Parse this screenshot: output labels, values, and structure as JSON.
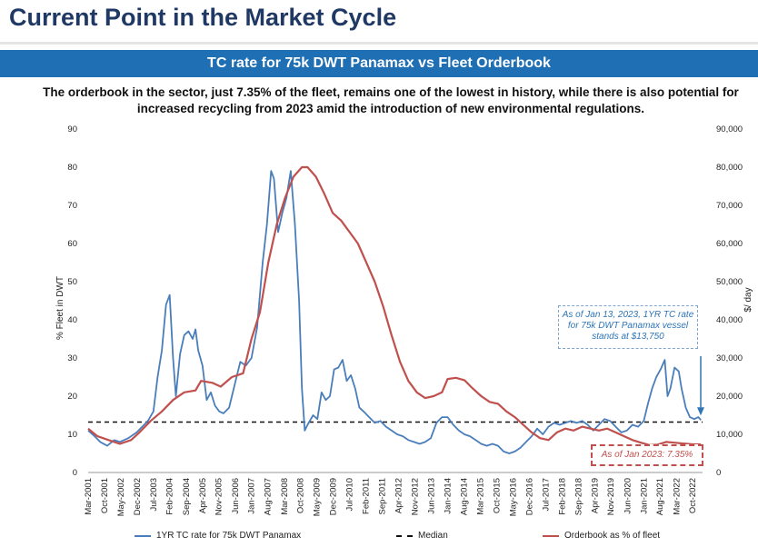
{
  "header": {
    "title": "Current Point in the Market Cycle",
    "banner": "TC rate for 75k DWT Panamax  vs Fleet Orderbook",
    "description": "The orderbook in the sector, just 7.35% of the fleet, remains one of the lowest in history, while there is also potential for increased recycling from 2023 amid the introduction of new environmental regulations."
  },
  "chart_data": {
    "type": "line",
    "ylabel": "% Fleet in DWT",
    "y2label": "$/ day",
    "ylim": [
      0,
      90
    ],
    "y2lim": [
      0,
      90000
    ],
    "yticks": [
      "0",
      "10",
      "20",
      "30",
      "40",
      "50",
      "60",
      "70",
      "80",
      "90"
    ],
    "y2ticks": [
      "0",
      "10,000",
      "20,000",
      "30,000",
      "40,000",
      "50,000",
      "60,000",
      "70,000",
      "80,000",
      "90,000"
    ],
    "xlim": [
      2001.17,
      2023.1
    ],
    "xticks": [
      {
        "label": "Mar-2001",
        "x": 2001.17
      },
      {
        "label": "Oct-2001",
        "x": 2001.75
      },
      {
        "label": "May-2002",
        "x": 2002.33
      },
      {
        "label": "Dec-2002",
        "x": 2002.92
      },
      {
        "label": "Jul-2003",
        "x": 2003.5
      },
      {
        "label": "Feb-2004",
        "x": 2004.08
      },
      {
        "label": "Sep-2004",
        "x": 2004.67
      },
      {
        "label": "Apr-2005",
        "x": 2005.25
      },
      {
        "label": "Nov-2005",
        "x": 2005.83
      },
      {
        "label": "Jun-2006",
        "x": 2006.42
      },
      {
        "label": "Jan-2007",
        "x": 2007.0
      },
      {
        "label": "Aug-2007",
        "x": 2007.58
      },
      {
        "label": "Mar-2008",
        "x": 2008.17
      },
      {
        "label": "Oct-2008",
        "x": 2008.75
      },
      {
        "label": "May-2009",
        "x": 2009.33
      },
      {
        "label": "Dec-2009",
        "x": 2009.92
      },
      {
        "label": "Jul-2010",
        "x": 2010.5
      },
      {
        "label": "Feb-2011",
        "x": 2011.08
      },
      {
        "label": "Sep-2011",
        "x": 2011.67
      },
      {
        "label": "Apr-2012",
        "x": 2012.25
      },
      {
        "label": "Nov-2012",
        "x": 2012.83
      },
      {
        "label": "Jun-2013",
        "x": 2013.42
      },
      {
        "label": "Jan-2014",
        "x": 2014.0
      },
      {
        "label": "Aug-2014",
        "x": 2014.58
      },
      {
        "label": "Mar-2015",
        "x": 2015.17
      },
      {
        "label": "Oct-2015",
        "x": 2015.75
      },
      {
        "label": "May-2016",
        "x": 2016.33
      },
      {
        "label": "Dec-2016",
        "x": 2016.92
      },
      {
        "label": "Jul-2017",
        "x": 2017.5
      },
      {
        "label": "Feb-2018",
        "x": 2018.08
      },
      {
        "label": "Sep-2018",
        "x": 2018.67
      },
      {
        "label": "Apr-2019",
        "x": 2019.25
      },
      {
        "label": "Nov-2019",
        "x": 2019.83
      },
      {
        "label": "Jun-2020",
        "x": 2020.42
      },
      {
        "label": "Jan-2021",
        "x": 2021.0
      },
      {
        "label": "Aug-2021",
        "x": 2021.58
      },
      {
        "label": "Mar-2022",
        "x": 2022.17
      },
      {
        "label": "Oct-2022",
        "x": 2022.75
      }
    ],
    "median": {
      "name": "Median",
      "value": 13.2
    },
    "series": [
      {
        "name": "1YR TC rate for 75k DWT Panamax",
        "color": "#4a7ebb",
        "axis": "right",
        "points": [
          [
            2001.17,
            11000
          ],
          [
            2001.4,
            9500
          ],
          [
            2001.6,
            8000
          ],
          [
            2001.85,
            7000
          ],
          [
            2002.1,
            8500
          ],
          [
            2002.3,
            8000
          ],
          [
            2002.6,
            9000
          ],
          [
            2002.9,
            10500
          ],
          [
            2003.1,
            12000
          ],
          [
            2003.3,
            13500
          ],
          [
            2003.5,
            16000
          ],
          [
            2003.65,
            25000
          ],
          [
            2003.8,
            32000
          ],
          [
            2003.95,
            44000
          ],
          [
            2004.08,
            46500
          ],
          [
            2004.2,
            30000
          ],
          [
            2004.3,
            20000
          ],
          [
            2004.45,
            31000
          ],
          [
            2004.6,
            36000
          ],
          [
            2004.75,
            37000
          ],
          [
            2004.9,
            35000
          ],
          [
            2005.0,
            37500
          ],
          [
            2005.1,
            32000
          ],
          [
            2005.25,
            28000
          ],
          [
            2005.4,
            19000
          ],
          [
            2005.55,
            21000
          ],
          [
            2005.7,
            17500
          ],
          [
            2005.85,
            16000
          ],
          [
            2006.0,
            15500
          ],
          [
            2006.2,
            17000
          ],
          [
            2006.4,
            23000
          ],
          [
            2006.6,
            29000
          ],
          [
            2006.8,
            28000
          ],
          [
            2007.0,
            30000
          ],
          [
            2007.2,
            38000
          ],
          [
            2007.4,
            55000
          ],
          [
            2007.55,
            65000
          ],
          [
            2007.7,
            79000
          ],
          [
            2007.8,
            77000
          ],
          [
            2007.95,
            63000
          ],
          [
            2008.1,
            68000
          ],
          [
            2008.25,
            72000
          ],
          [
            2008.4,
            79000
          ],
          [
            2008.55,
            65000
          ],
          [
            2008.7,
            45000
          ],
          [
            2008.8,
            22000
          ],
          [
            2008.9,
            11000
          ],
          [
            2009.0,
            12500
          ],
          [
            2009.2,
            15000
          ],
          [
            2009.35,
            14000
          ],
          [
            2009.5,
            21000
          ],
          [
            2009.65,
            19000
          ],
          [
            2009.8,
            20000
          ],
          [
            2009.95,
            27000
          ],
          [
            2010.1,
            27500
          ],
          [
            2010.25,
            29500
          ],
          [
            2010.4,
            24000
          ],
          [
            2010.55,
            25500
          ],
          [
            2010.7,
            22000
          ],
          [
            2010.85,
            17000
          ],
          [
            2011.0,
            16000
          ],
          [
            2011.2,
            14500
          ],
          [
            2011.4,
            13000
          ],
          [
            2011.6,
            13500
          ],
          [
            2011.8,
            12000
          ],
          [
            2012.0,
            11000
          ],
          [
            2012.2,
            10000
          ],
          [
            2012.4,
            9500
          ],
          [
            2012.6,
            8500
          ],
          [
            2012.8,
            8000
          ],
          [
            2013.0,
            7500
          ],
          [
            2013.2,
            8000
          ],
          [
            2013.4,
            9000
          ],
          [
            2013.6,
            13000
          ],
          [
            2013.8,
            14500
          ],
          [
            2014.0,
            14500
          ],
          [
            2014.2,
            12500
          ],
          [
            2014.4,
            11000
          ],
          [
            2014.6,
            10000
          ],
          [
            2014.8,
            9500
          ],
          [
            2015.0,
            8500
          ],
          [
            2015.2,
            7500
          ],
          [
            2015.4,
            7000
          ],
          [
            2015.6,
            7500
          ],
          [
            2015.8,
            7000
          ],
          [
            2016.0,
            5500
          ],
          [
            2016.2,
            5000
          ],
          [
            2016.4,
            5500
          ],
          [
            2016.6,
            6500
          ],
          [
            2016.8,
            8000
          ],
          [
            2017.0,
            9500
          ],
          [
            2017.2,
            11500
          ],
          [
            2017.4,
            10000
          ],
          [
            2017.6,
            12000
          ],
          [
            2017.8,
            13000
          ],
          [
            2018.0,
            12500
          ],
          [
            2018.2,
            13000
          ],
          [
            2018.4,
            13500
          ],
          [
            2018.6,
            13000
          ],
          [
            2018.8,
            13500
          ],
          [
            2019.0,
            12500
          ],
          [
            2019.2,
            11000
          ],
          [
            2019.4,
            12500
          ],
          [
            2019.6,
            14000
          ],
          [
            2019.8,
            13500
          ],
          [
            2020.0,
            12000
          ],
          [
            2020.2,
            10500
          ],
          [
            2020.4,
            11000
          ],
          [
            2020.6,
            12500
          ],
          [
            2020.8,
            12000
          ],
          [
            2021.0,
            13500
          ],
          [
            2021.15,
            18000
          ],
          [
            2021.3,
            22000
          ],
          [
            2021.45,
            25000
          ],
          [
            2021.6,
            27000
          ],
          [
            2021.75,
            29500
          ],
          [
            2021.85,
            20000
          ],
          [
            2021.95,
            22000
          ],
          [
            2022.1,
            27500
          ],
          [
            2022.25,
            26500
          ],
          [
            2022.35,
            22000
          ],
          [
            2022.5,
            17000
          ],
          [
            2022.65,
            14500
          ],
          [
            2022.8,
            14000
          ],
          [
            2022.95,
            14500
          ],
          [
            2023.04,
            13750
          ]
        ]
      },
      {
        "name": "Orderbook as % of fleet",
        "color": "#c0504d",
        "axis": "left",
        "points": [
          [
            2001.17,
            11.5
          ],
          [
            2001.5,
            9.5
          ],
          [
            2001.9,
            8.5
          ],
          [
            2002.3,
            7.5
          ],
          [
            2002.7,
            8.5
          ],
          [
            2003.0,
            10.5
          ],
          [
            2003.4,
            13.5
          ],
          [
            2003.8,
            16.0
          ],
          [
            2004.2,
            19.0
          ],
          [
            2004.6,
            21.0
          ],
          [
            2005.0,
            21.5
          ],
          [
            2005.2,
            24.0
          ],
          [
            2005.6,
            23.5
          ],
          [
            2005.9,
            22.5
          ],
          [
            2006.3,
            25.0
          ],
          [
            2006.7,
            26.0
          ],
          [
            2007.0,
            35.0
          ],
          [
            2007.3,
            42.0
          ],
          [
            2007.6,
            55.0
          ],
          [
            2007.9,
            65.0
          ],
          [
            2008.2,
            72.0
          ],
          [
            2008.5,
            77.5
          ],
          [
            2008.8,
            80.0
          ],
          [
            2009.0,
            80.0
          ],
          [
            2009.3,
            77.5
          ],
          [
            2009.6,
            73.0
          ],
          [
            2009.9,
            68.0
          ],
          [
            2010.2,
            66.0
          ],
          [
            2010.5,
            63.0
          ],
          [
            2010.8,
            60.0
          ],
          [
            2011.1,
            55.0
          ],
          [
            2011.4,
            50.0
          ],
          [
            2011.7,
            43.5
          ],
          [
            2012.0,
            36.0
          ],
          [
            2012.3,
            29.0
          ],
          [
            2012.6,
            24.0
          ],
          [
            2012.9,
            21.0
          ],
          [
            2013.2,
            19.5
          ],
          [
            2013.5,
            20.0
          ],
          [
            2013.8,
            21.0
          ],
          [
            2014.0,
            24.5
          ],
          [
            2014.3,
            24.8
          ],
          [
            2014.6,
            24.2
          ],
          [
            2014.9,
            22.0
          ],
          [
            2015.2,
            20.0
          ],
          [
            2015.5,
            18.5
          ],
          [
            2015.8,
            18.0
          ],
          [
            2016.1,
            16.0
          ],
          [
            2016.4,
            14.5
          ],
          [
            2016.7,
            12.5
          ],
          [
            2017.0,
            10.5
          ],
          [
            2017.3,
            9.0
          ],
          [
            2017.6,
            8.5
          ],
          [
            2017.9,
            10.5
          ],
          [
            2018.2,
            11.5
          ],
          [
            2018.5,
            11.0
          ],
          [
            2018.8,
            12.0
          ],
          [
            2019.1,
            11.5
          ],
          [
            2019.4,
            11.0
          ],
          [
            2019.7,
            11.5
          ],
          [
            2020.0,
            10.5
          ],
          [
            2020.3,
            9.5
          ],
          [
            2020.6,
            8.5
          ],
          [
            2020.9,
            7.8
          ],
          [
            2021.2,
            7.2
          ],
          [
            2021.5,
            7.3
          ],
          [
            2021.8,
            8.0
          ],
          [
            2022.1,
            7.8
          ],
          [
            2022.4,
            7.6
          ],
          [
            2022.7,
            7.4
          ],
          [
            2023.04,
            7.35
          ]
        ]
      }
    ],
    "annotations": {
      "tc": "As of Jan 13, 2023, 1YR TC rate for 75k DWT Panamax vessel stands at $13,750",
      "orderbook": "As of Jan 2023: 7.35%"
    },
    "legend": {
      "position": "bottom"
    }
  }
}
